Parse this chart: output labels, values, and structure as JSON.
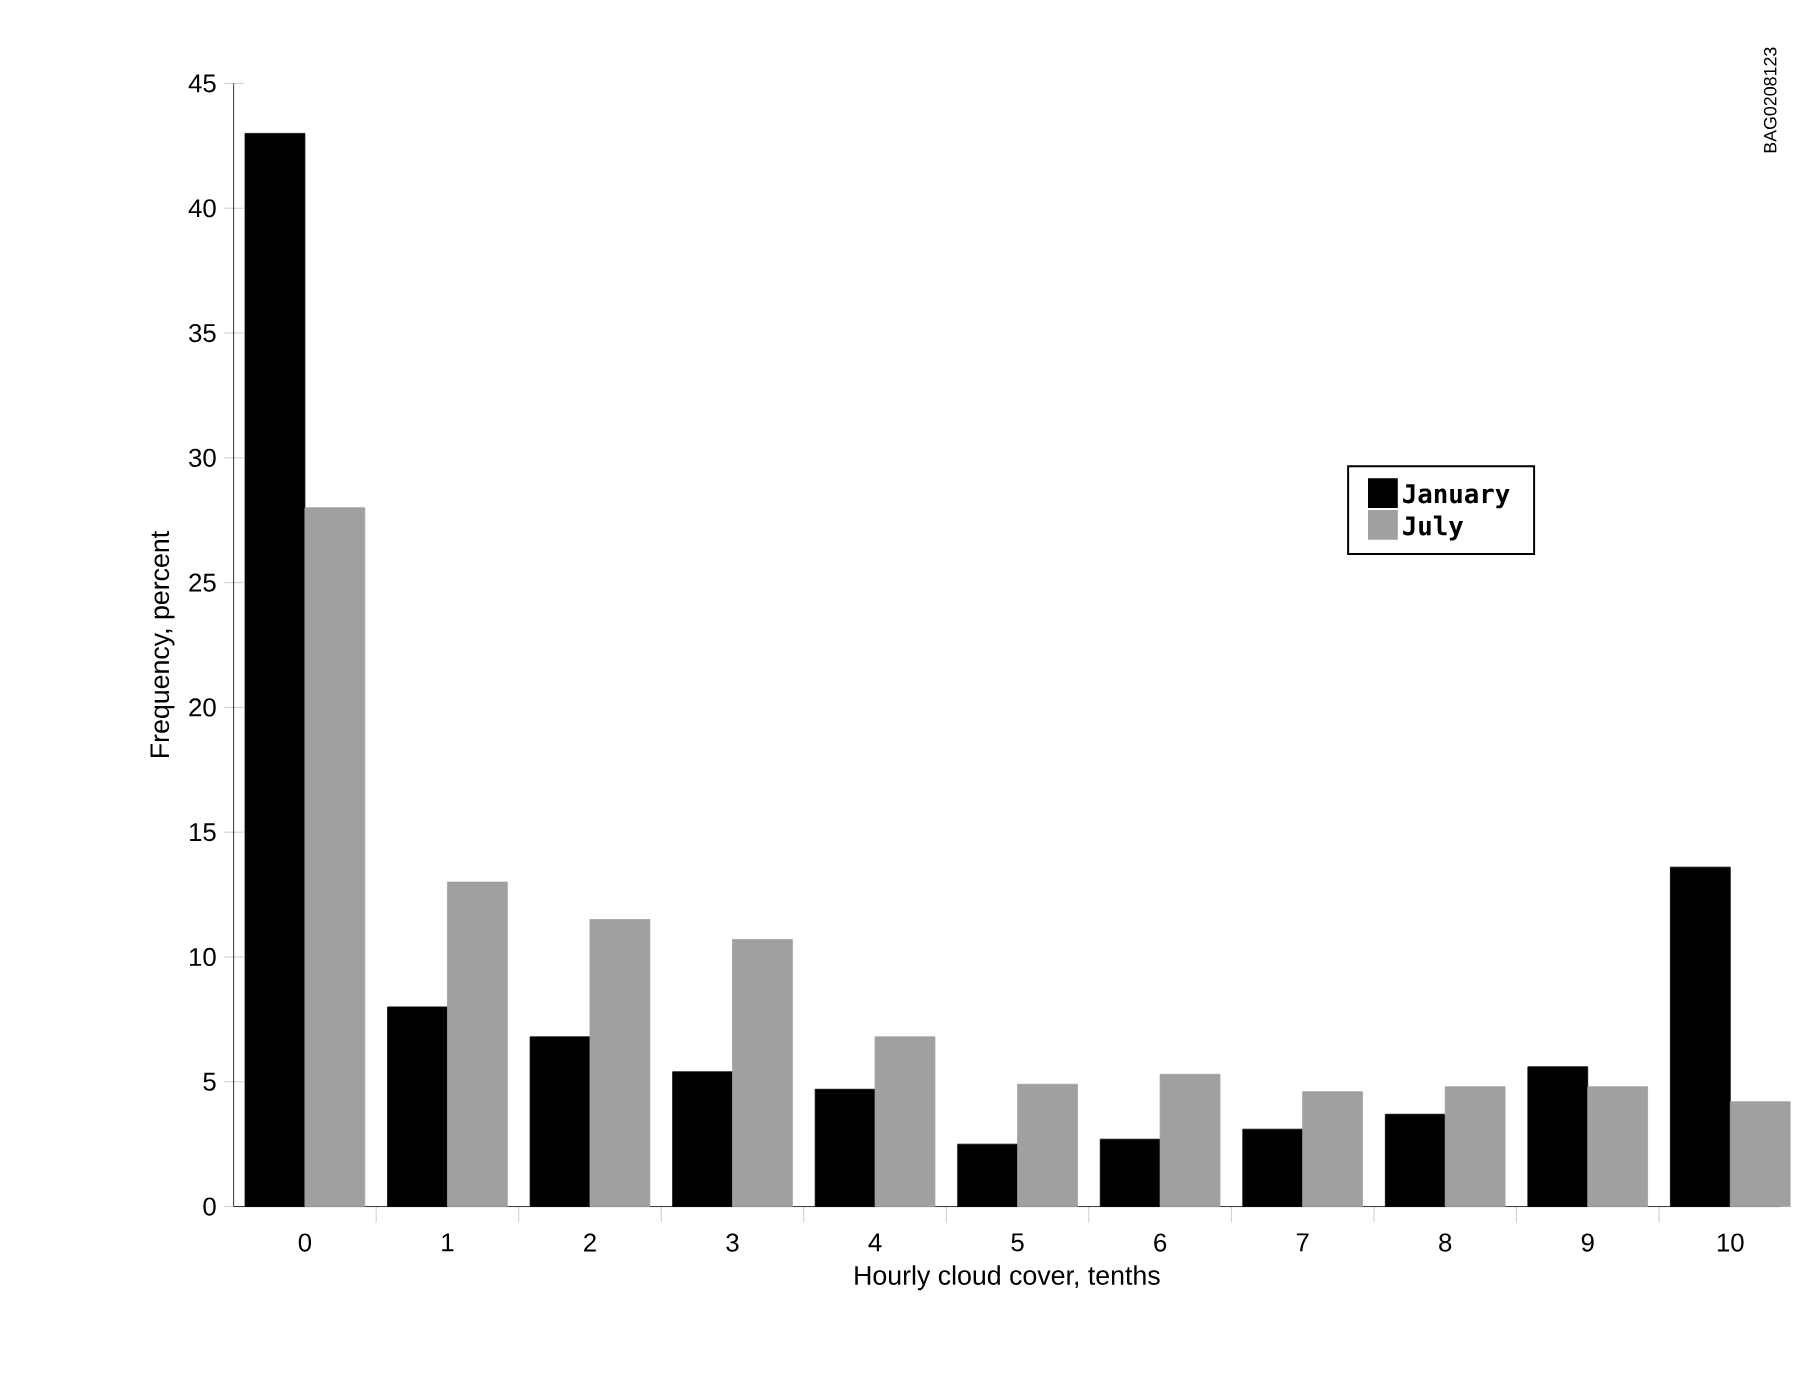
{
  "chart_data": {
    "type": "bar",
    "xlabel": "Hourly cloud cover, tenths",
    "ylabel": "Frequency, percent",
    "categories": [
      "0",
      "1",
      "2",
      "3",
      "4",
      "5",
      "6",
      "7",
      "8",
      "9",
      "10"
    ],
    "series": [
      {
        "name": "January",
        "color": "#000000",
        "values": [
          43,
          8.0,
          6.8,
          5.4,
          4.7,
          2.5,
          2.7,
          3.1,
          3.7,
          5.6,
          13.6
        ]
      },
      {
        "name": "July",
        "color": "#a0a0a0",
        "values": [
          28,
          13,
          11.5,
          10.7,
          6.8,
          4.9,
          5.3,
          4.6,
          4.8,
          4.8,
          4.2
        ]
      }
    ],
    "ylim": [
      0,
      45
    ],
    "yticks": [
      0,
      5,
      10,
      15,
      20,
      25,
      30,
      35,
      40,
      45
    ],
    "grid": false,
    "legend": "right",
    "annotations": [
      "BAG0208123"
    ]
  }
}
